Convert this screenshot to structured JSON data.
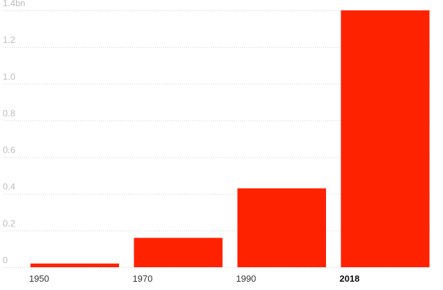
{
  "chart_data": {
    "type": "bar",
    "categories": [
      "1950",
      "1970",
      "1990",
      "2018"
    ],
    "values": [
      0.02,
      0.16,
      0.43,
      1.4
    ],
    "y_ticks": [
      {
        "value": 0,
        "label": "0"
      },
      {
        "value": 0.2,
        "label": "0.2"
      },
      {
        "value": 0.4,
        "label": "0.4"
      },
      {
        "value": 0.6,
        "label": "0.6"
      },
      {
        "value": 0.8,
        "label": "0.8"
      },
      {
        "value": 1.0,
        "label": "1.0"
      },
      {
        "value": 1.2,
        "label": "1.2"
      },
      {
        "value": 1.4,
        "label": "1.4bn"
      }
    ],
    "highlight_category": "2018",
    "ylim": [
      0,
      1.4
    ],
    "grid": true,
    "bar_color": "#ff2200",
    "title": "",
    "xlabel": "",
    "ylabel": ""
  }
}
